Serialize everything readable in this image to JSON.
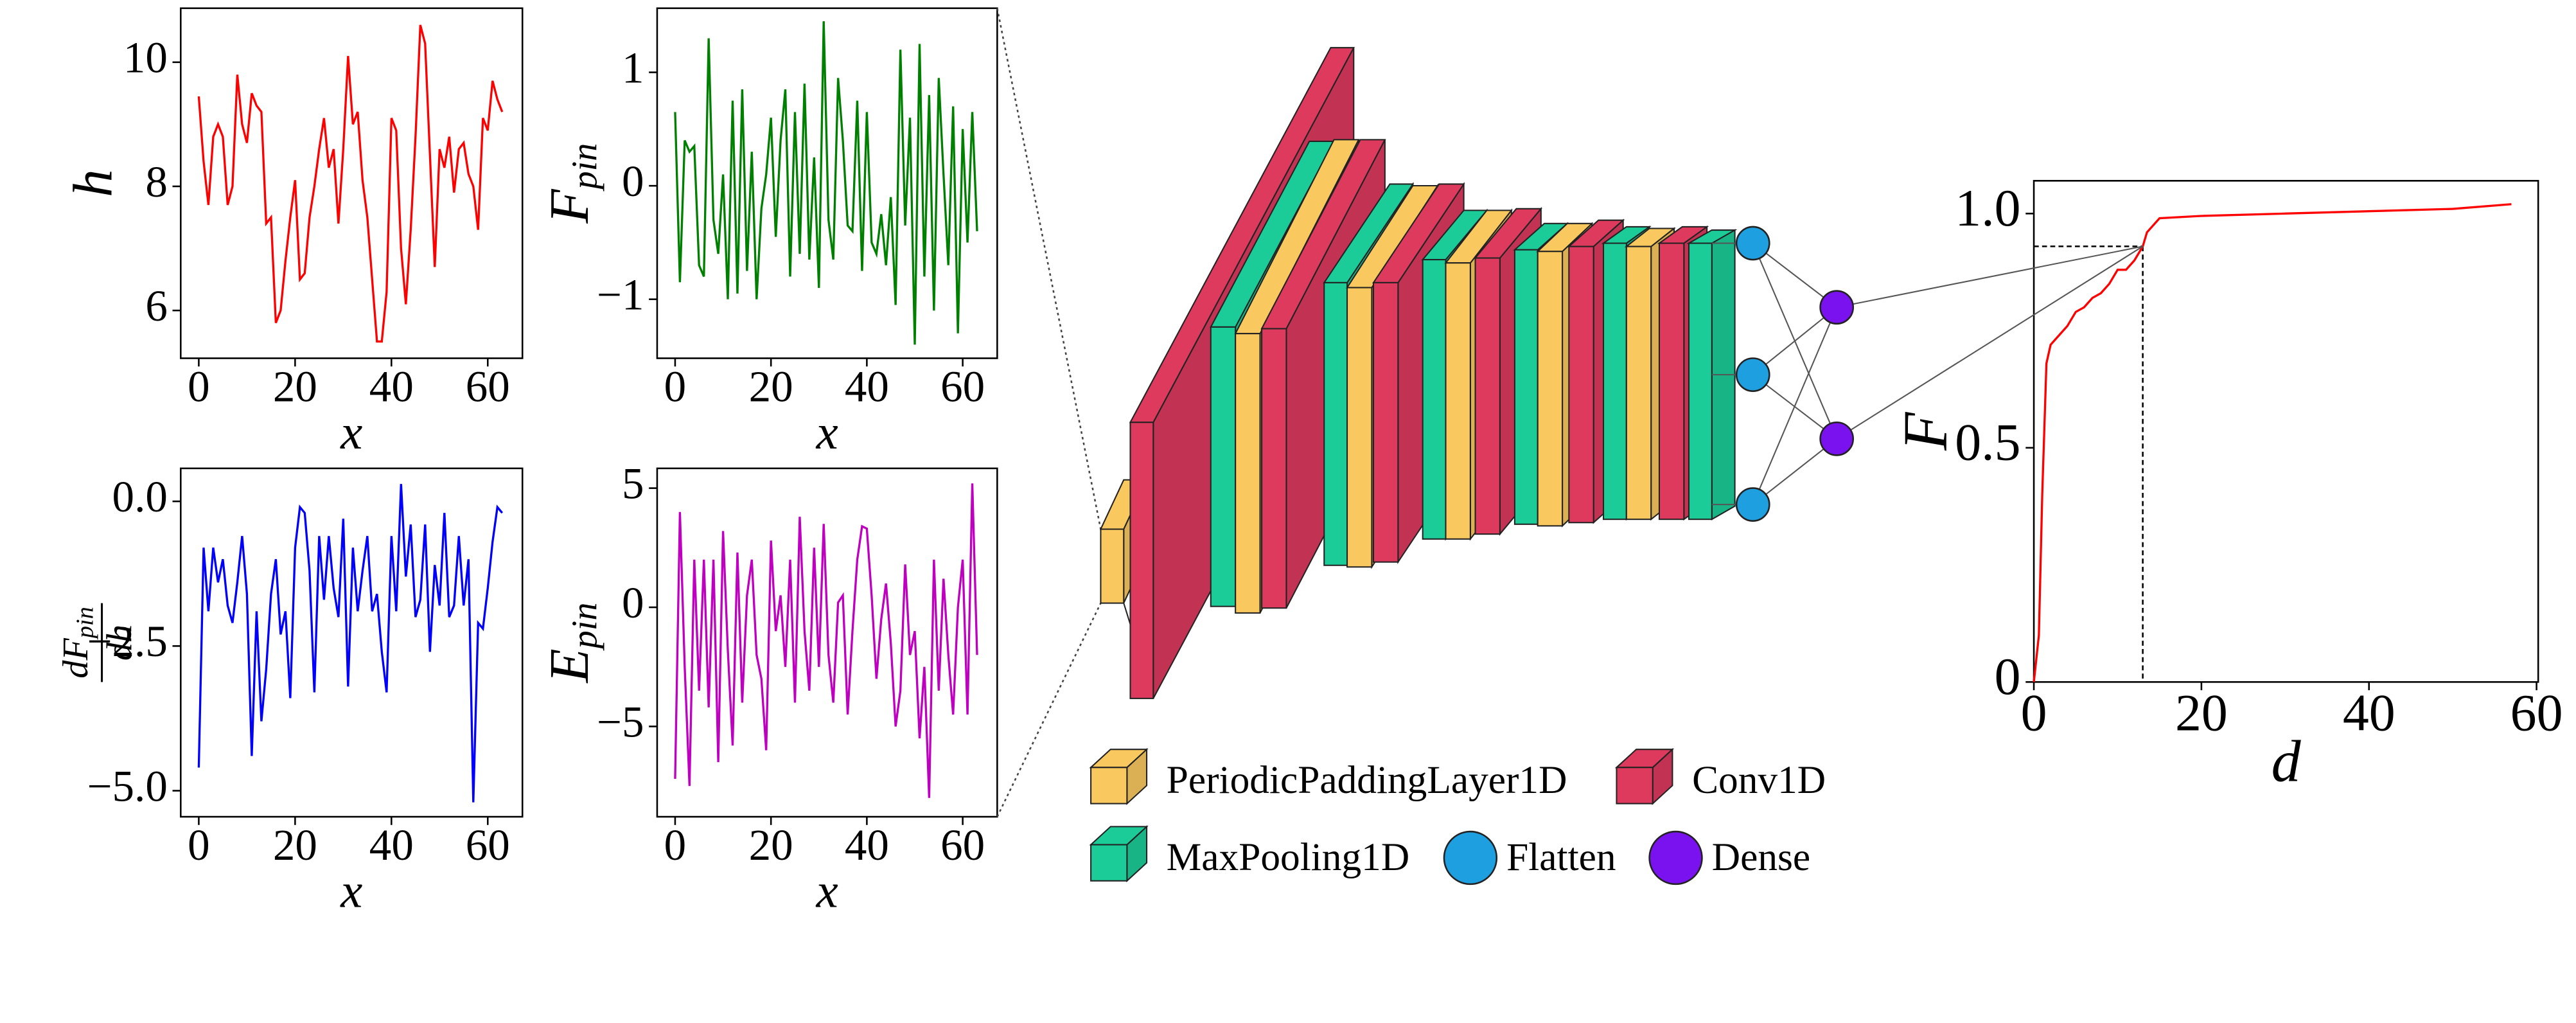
{
  "chart_data": [
    {
      "type": "line",
      "xlabel": "x",
      "ylabel": {
        "main": "h"
      },
      "color": "#ff0000",
      "x": [
        0,
        1,
        2,
        3,
        4,
        5,
        6,
        7,
        8,
        9,
        10,
        11,
        12,
        13,
        14,
        15,
        16,
        17,
        18,
        19,
        20,
        21,
        22,
        23,
        24,
        25,
        26,
        27,
        28,
        29,
        30,
        31,
        32,
        33,
        34,
        35,
        36,
        37,
        38,
        39,
        40,
        41,
        42,
        43,
        44,
        45,
        46,
        47,
        48,
        49,
        50,
        51,
        52,
        53,
        54,
        55,
        56,
        57,
        58,
        59,
        60,
        61,
        62,
        63
      ],
      "values": [
        9.45,
        8.4,
        7.7,
        8.8,
        9.0,
        8.8,
        7.7,
        8.0,
        9.8,
        9.0,
        8.7,
        9.5,
        9.3,
        9.2,
        7.4,
        7.5,
        5.8,
        6.0,
        6.8,
        7.5,
        8.1,
        6.5,
        6.6,
        7.5,
        8.0,
        8.6,
        9.1,
        8.3,
        8.6,
        7.4,
        8.6,
        10.1,
        9.0,
        9.2,
        8.1,
        7.5,
        6.5,
        5.5,
        5.5,
        6.3,
        9.1,
        8.9,
        7.0,
        6.1,
        7.3,
        8.8,
        10.6,
        10.3,
        8.5,
        6.7,
        8.6,
        8.3,
        8.8,
        7.9,
        8.6,
        8.7,
        8.2,
        8.0,
        7.3,
        9.1,
        8.9,
        9.7,
        9.4,
        9.2
      ],
      "xlim": [
        -3.75,
        67.2
      ],
      "xticks": [
        0,
        20,
        40,
        60
      ],
      "ylim": [
        5.23,
        10.87
      ],
      "yticks": [
        6,
        8,
        10
      ]
    },
    {
      "type": "line",
      "xlabel": "x",
      "ylabel": {
        "main": "F",
        "sub": "pin"
      },
      "color": "#008000",
      "x": [
        0,
        1,
        2,
        3,
        4,
        5,
        6,
        7,
        8,
        9,
        10,
        11,
        12,
        13,
        14,
        15,
        16,
        17,
        18,
        19,
        20,
        21,
        22,
        23,
        24,
        25,
        26,
        27,
        28,
        29,
        30,
        31,
        32,
        33,
        34,
        35,
        36,
        37,
        38,
        39,
        40,
        41,
        42,
        43,
        44,
        45,
        46,
        47,
        48,
        49,
        50,
        51,
        52,
        53,
        54,
        55,
        56,
        57,
        58,
        59,
        60,
        61,
        62,
        63
      ],
      "values": [
        0.65,
        -0.85,
        0.4,
        0.3,
        0.35,
        -0.7,
        -0.8,
        1.3,
        -0.3,
        -0.6,
        0.1,
        -1.0,
        0.75,
        -0.95,
        0.85,
        -0.75,
        0.3,
        -1.0,
        -0.2,
        0.1,
        0.6,
        -0.45,
        0.4,
        0.85,
        -0.8,
        0.65,
        -0.6,
        0.9,
        -0.65,
        0.25,
        -0.9,
        1.45,
        -0.3,
        -0.65,
        0.95,
        0.4,
        -0.35,
        -0.4,
        0.75,
        -0.75,
        0.65,
        -0.5,
        -0.6,
        -0.25,
        -0.7,
        -0.1,
        -1.05,
        1.2,
        -0.35,
        0.6,
        -1.4,
        1.25,
        -0.8,
        0.8,
        -1.1,
        0.95,
        0.1,
        -0.7,
        0.7,
        -1.3,
        0.5,
        -0.5,
        0.65,
        -0.4
      ],
      "xlim": [
        -3.75,
        67.2
      ],
      "xticks": [
        0,
        20,
        40,
        60
      ],
      "ylim": [
        -1.52,
        1.565
      ],
      "yticks": [
        {
          "value": -1,
          "label": "−1"
        },
        0,
        1
      ]
    },
    {
      "type": "line",
      "xlabel": "x",
      "ylabel": {
        "numerator": "dF",
        "sub": "pin",
        "denominator": "dh"
      },
      "color": "#0000ff",
      "x": [
        0,
        1,
        2,
        3,
        4,
        5,
        6,
        7,
        8,
        9,
        10,
        11,
        12,
        13,
        14,
        15,
        16,
        17,
        18,
        19,
        20,
        21,
        22,
        23,
        24,
        25,
        26,
        27,
        28,
        29,
        30,
        31,
        32,
        33,
        34,
        35,
        36,
        37,
        38,
        39,
        40,
        41,
        42,
        43,
        44,
        45,
        46,
        47,
        48,
        49,
        50,
        51,
        52,
        53,
        54,
        55,
        56,
        57,
        58,
        59,
        60,
        61,
        62,
        63
      ],
      "values": [
        -4.6,
        -0.8,
        -1.9,
        -0.8,
        -1.4,
        -1.0,
        -1.8,
        -2.1,
        -1.4,
        -0.6,
        -1.6,
        -4.4,
        -1.9,
        -3.8,
        -2.9,
        -1.6,
        -1.0,
        -2.3,
        -1.9,
        -3.4,
        -0.8,
        -0.1,
        -0.2,
        -1.2,
        -3.3,
        -0.6,
        -1.7,
        -0.6,
        -1.5,
        -2.0,
        -0.3,
        -3.2,
        -0.8,
        -1.9,
        -1.2,
        -0.6,
        -1.9,
        -1.6,
        -2.6,
        -3.3,
        -0.6,
        -1.9,
        0.3,
        -1.3,
        -0.4,
        -2.0,
        -1.7,
        -0.4,
        -2.6,
        -1.1,
        -1.8,
        -0.2,
        -2.0,
        -1.8,
        -0.6,
        -1.8,
        -1.0,
        -5.2,
        -2.1,
        -2.2,
        -1.5,
        -0.7,
        -0.1,
        -0.2
      ],
      "xlim": [
        -3.75,
        67.2
      ],
      "xticks": [
        0,
        20,
        40,
        60
      ],
      "ylim": [
        -5.45,
        0.57
      ],
      "yticks": [
        {
          "value": -5,
          "label": "−5.0"
        },
        {
          "value": -2.5,
          "label": "−2.5"
        },
        {
          "value": 0,
          "label": "0.0"
        }
      ]
    },
    {
      "type": "line",
      "xlabel": "x",
      "ylabel": {
        "main": "E",
        "sub": "pin"
      },
      "color": "#c000c0",
      "x": [
        0,
        1,
        2,
        3,
        4,
        5,
        6,
        7,
        8,
        9,
        10,
        11,
        12,
        13,
        14,
        15,
        16,
        17,
        18,
        19,
        20,
        21,
        22,
        23,
        24,
        25,
        26,
        27,
        28,
        29,
        30,
        31,
        32,
        33,
        34,
        35,
        36,
        37,
        38,
        39,
        40,
        41,
        42,
        43,
        44,
        45,
        46,
        47,
        48,
        49,
        50,
        51,
        52,
        53,
        54,
        55,
        56,
        57,
        58,
        59,
        60,
        61,
        62,
        63
      ],
      "values": [
        -7.2,
        4.0,
        -2.5,
        -7.5,
        2.0,
        -3.5,
        2.0,
        -4.2,
        2.0,
        -6.5,
        3.2,
        -1.8,
        -5.8,
        2.3,
        -4.0,
        0.5,
        2.0,
        -2.0,
        -3.0,
        -6.0,
        2.8,
        -1.0,
        0.5,
        -2.5,
        2.0,
        -4.0,
        3.8,
        -1.0,
        -3.5,
        2.5,
        -2.5,
        3.5,
        -2.0,
        -4.0,
        0.2,
        0.5,
        -4.5,
        -1.0,
        2.0,
        3.4,
        3.3,
        0.5,
        -3.0,
        -0.5,
        1.0,
        -1.5,
        -5.0,
        -3.5,
        1.8,
        -2.0,
        -1.0,
        -5.5,
        -2.5,
        -8.0,
        2.0,
        -3.5,
        1.2,
        -2.0,
        -4.5,
        0.0,
        2.0,
        -4.5,
        5.2,
        -2.0
      ],
      "xlim": [
        -3.75,
        67.2
      ],
      "xticks": [
        0,
        20,
        40,
        60
      ],
      "ylim": [
        -8.79,
        5.83
      ],
      "yticks": [
        {
          "value": -5,
          "label": "−5"
        },
        0,
        5
      ]
    },
    {
      "type": "line",
      "xlabel": "d",
      "ylabel": {
        "main": "F"
      },
      "color": "#ff0000",
      "x": [
        0,
        0.3,
        0.6,
        1,
        1.5,
        2,
        3,
        4,
        5,
        6,
        7,
        8,
        9,
        10,
        11,
        12,
        13,
        13.5,
        15,
        20,
        30,
        40,
        50,
        57
      ],
      "values": [
        0,
        0.05,
        0.1,
        0.4,
        0.68,
        0.72,
        0.74,
        0.76,
        0.79,
        0.8,
        0.82,
        0.83,
        0.85,
        0.88,
        0.88,
        0.9,
        0.93,
        0.96,
        0.99,
        0.995,
        1.0,
        1.005,
        1.01,
        1.02
      ],
      "xlim": [
        0,
        60.2
      ],
      "xticks": [
        0,
        20,
        40,
        60
      ],
      "ylim": [
        0,
        1.07
      ],
      "yticks": [
        0,
        0.5,
        {
          "value": 1,
          "label": "1.0"
        }
      ],
      "reference": {
        "x": 13,
        "y": 0.93
      }
    }
  ],
  "legend": [
    {
      "label": "PeriodicPaddingLayer1D",
      "color": "#f9c85f",
      "shape": "cube"
    },
    {
      "label": "Conv1D",
      "color": "#dd3a5e",
      "shape": "cube"
    },
    {
      "label": "MaxPooling1D",
      "color": "#1ccc98",
      "shape": "cube"
    },
    {
      "label": "Flatten",
      "color": "#1e9fe0",
      "shape": "circle"
    },
    {
      "label": "Dense",
      "color": "#7a12f0",
      "shape": "circle"
    }
  ]
}
